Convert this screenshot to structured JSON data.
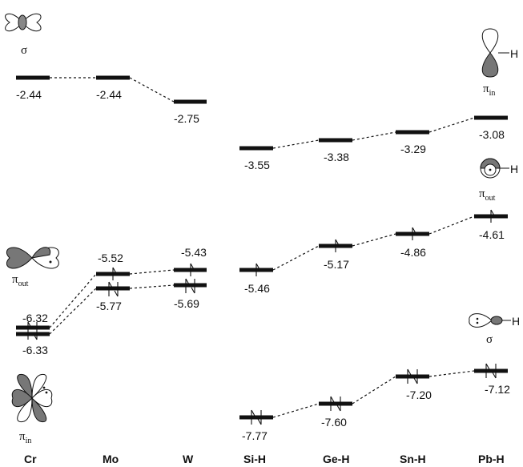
{
  "columns": [
    "Cr",
    "Mo",
    "W",
    "Si-H",
    "Ge-H",
    "Sn-H",
    "Pb-H"
  ],
  "levels": {
    "cr_sigma": "-2.44",
    "mo_sigma": "-2.44",
    "w_sigma": "-2.75",
    "cr_top": "-6.32",
    "cr_bot": "-6.33",
    "mo_top": "-5.52",
    "mo_bot": "-5.77",
    "w_top": "-5.43",
    "w_bot": "-5.69",
    "sih_pin": "-3.55",
    "geh_pin": "-3.38",
    "snh_pin": "-3.29",
    "pbh_pin": "-3.08",
    "sih_pout": "-5.46",
    "geh_pout": "-5.17",
    "snh_pout": "-4.86",
    "pbh_pout": "-4.61",
    "sih_sigma": "-7.77",
    "geh_sigma": "-7.60",
    "snh_sigma": "-7.20",
    "pbh_sigma": "-7.12"
  },
  "orbital_labels": {
    "sigma": "σ",
    "pi": "π",
    "in": "in",
    "out": "out",
    "h": "H"
  }
}
